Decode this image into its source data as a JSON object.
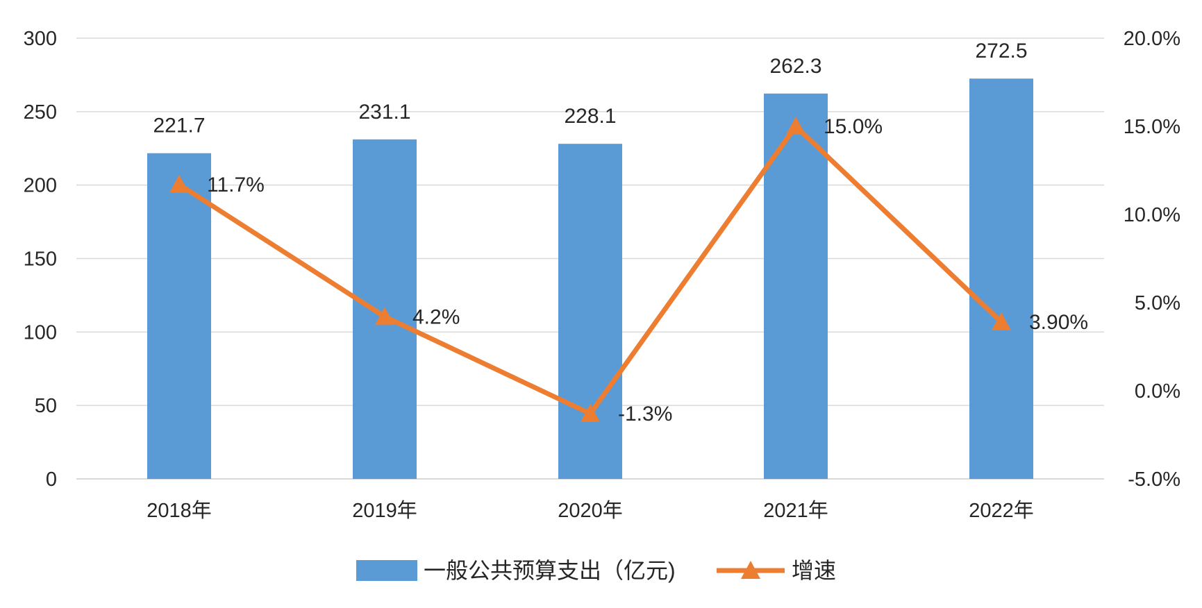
{
  "chart_data": {
    "type": "bar+line",
    "categories": [
      "2018年",
      "2019年",
      "2020年",
      "2021年",
      "2022年"
    ],
    "series": [
      {
        "name": "一般公共预算支出（亿元)",
        "type": "bar",
        "axis": "left",
        "values": [
          221.7,
          231.1,
          228.1,
          262.3,
          272.5
        ],
        "labels": [
          "221.7",
          "231.1",
          "228.1",
          "262.3",
          "272.5"
        ],
        "color": "#5B9BD5"
      },
      {
        "name": "增速",
        "type": "line",
        "axis": "right",
        "marker": "triangle",
        "values": [
          11.7,
          4.2,
          -1.3,
          15.0,
          3.9
        ],
        "labels": [
          "11.7%",
          "4.2%",
          "-1.3%",
          "15.0%",
          "3.90%"
        ],
        "color": "#ED7D31"
      }
    ],
    "y_left": {
      "range": [
        0,
        300
      ],
      "ticks": [
        0,
        50,
        100,
        150,
        200,
        250,
        300
      ],
      "tick_labels": [
        "0",
        "50",
        "100",
        "150",
        "200",
        "250",
        "300"
      ]
    },
    "y_right": {
      "range": [
        -5,
        20
      ],
      "ticks": [
        -5,
        0,
        5,
        10,
        15,
        20
      ],
      "tick_labels": [
        "-5.0%",
        "0.0%",
        "5.0%",
        "10.0%",
        "15.0%",
        "20.0%"
      ]
    },
    "grid": true,
    "legend_position": "bottom",
    "gridline_color": "#D9D9D9"
  }
}
